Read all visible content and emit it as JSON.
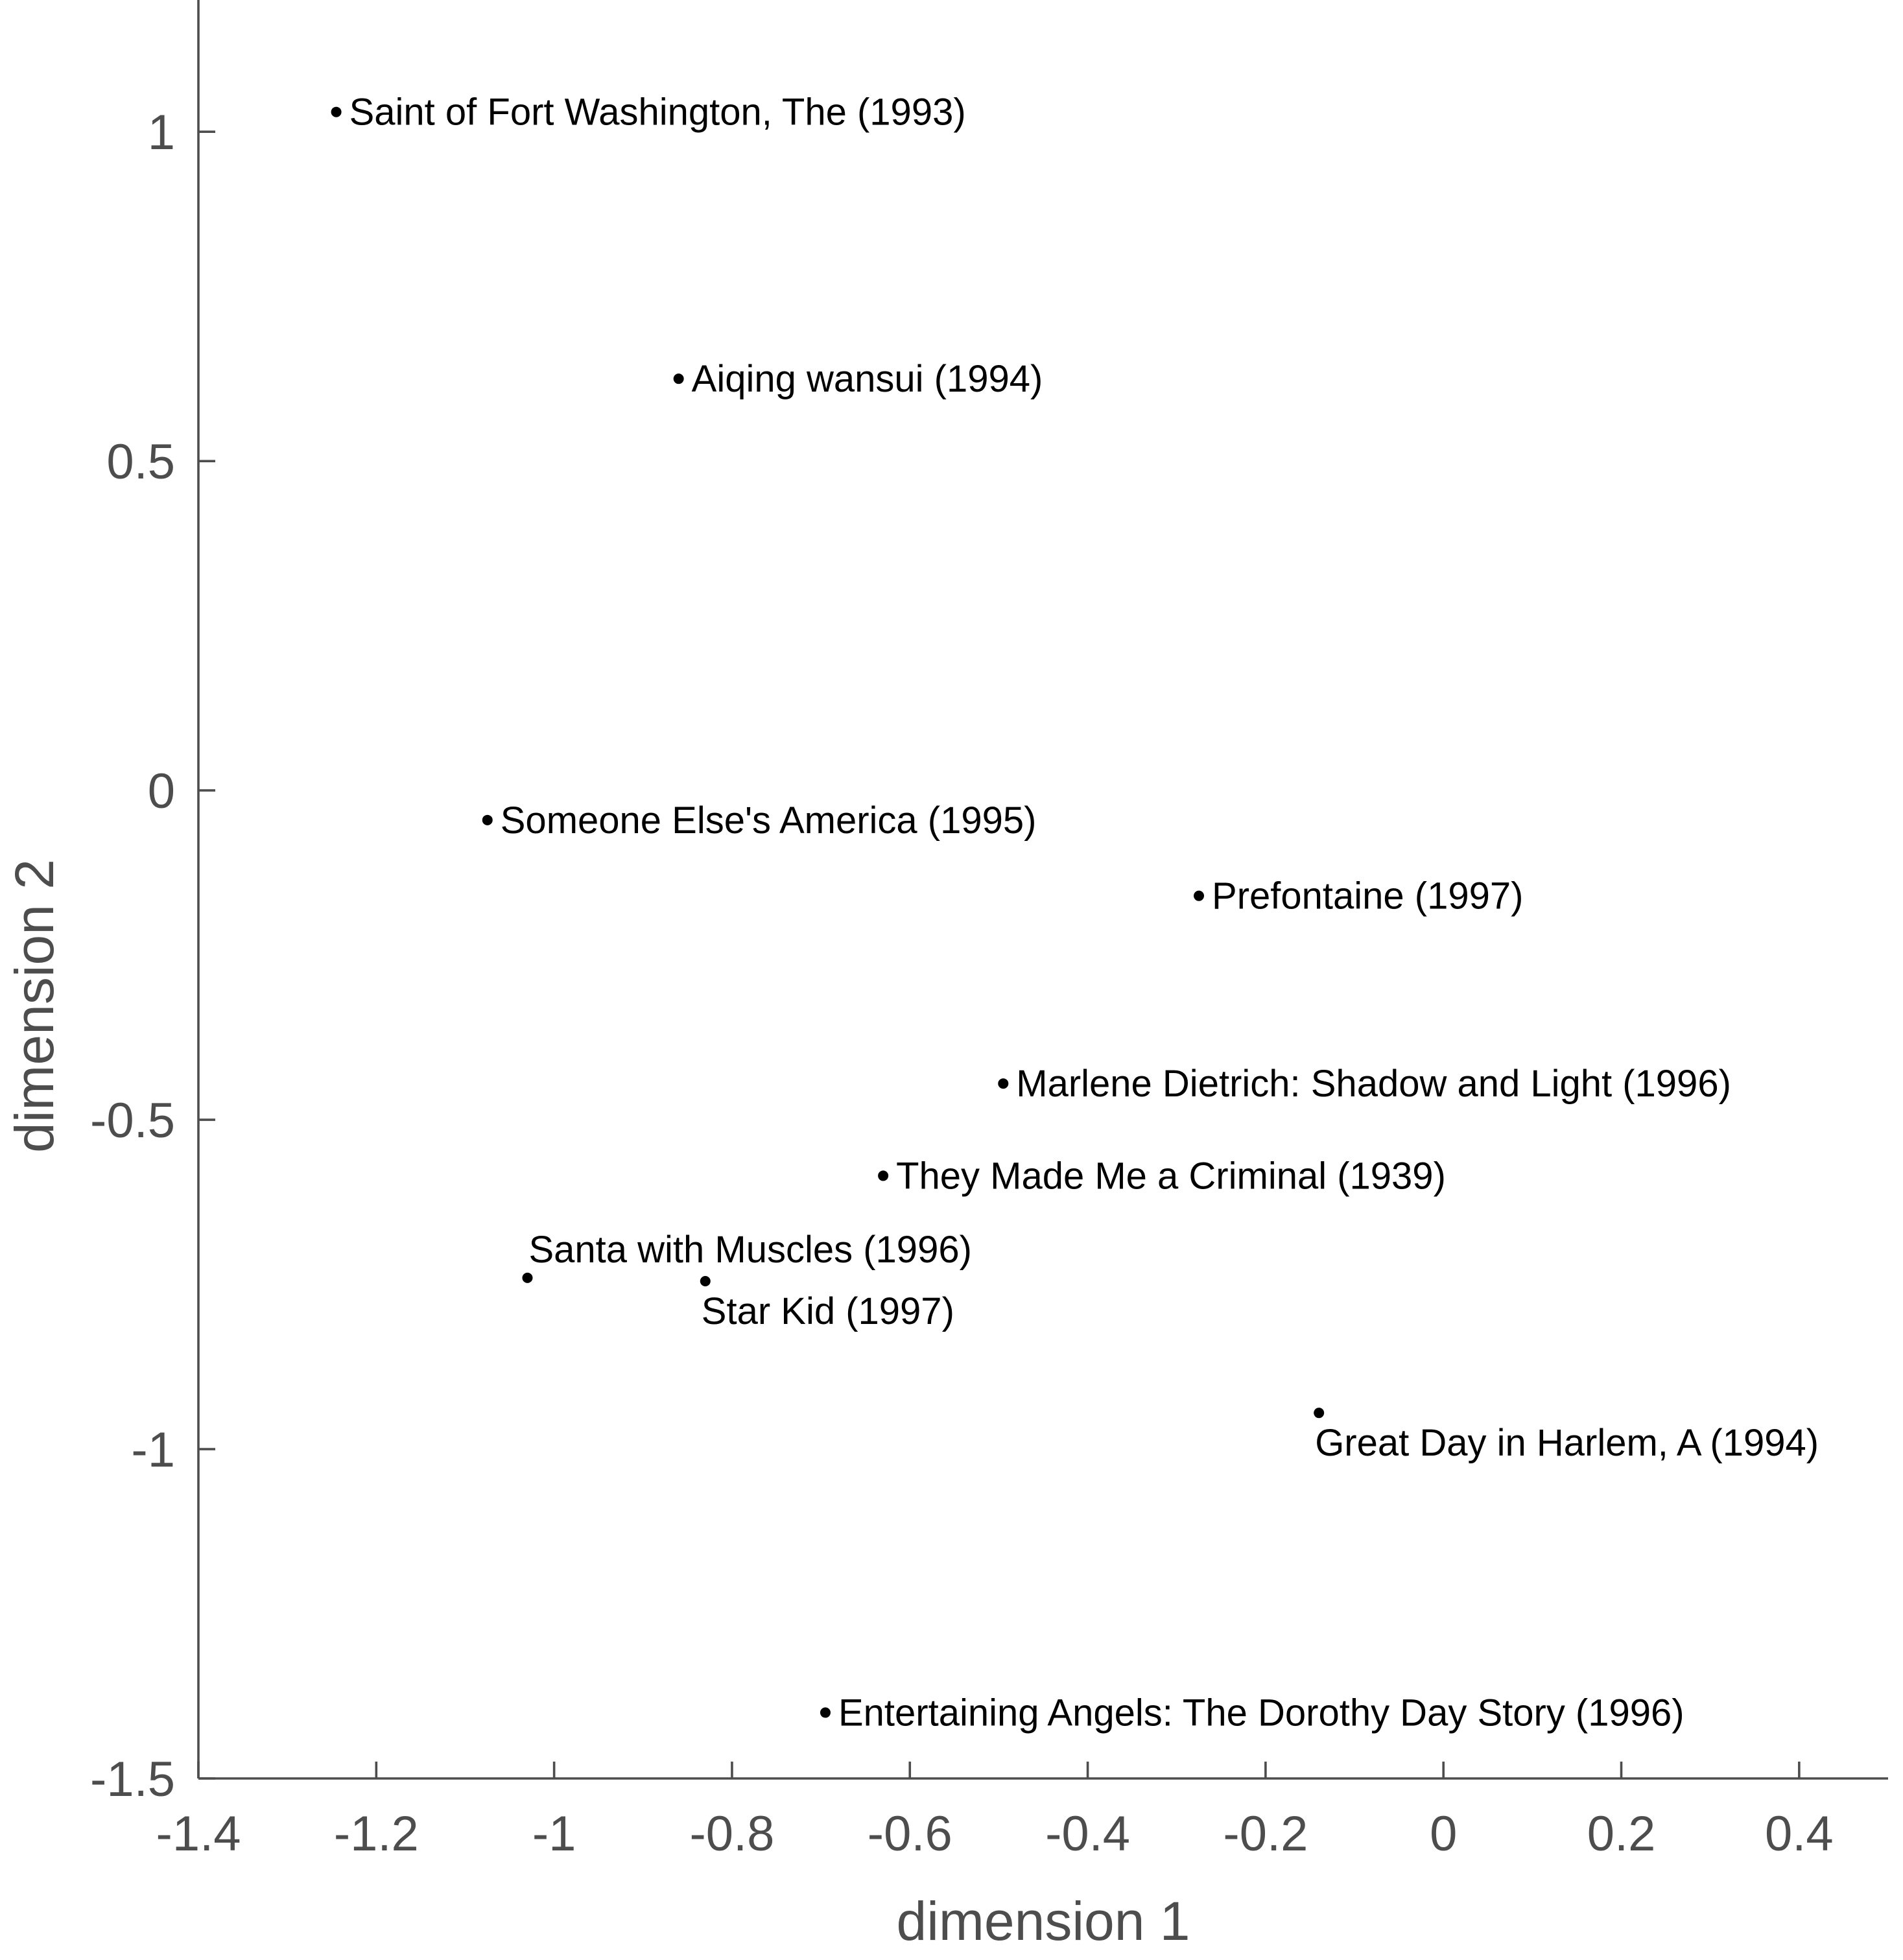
{
  "chart_data": {
    "type": "scatter",
    "title": "",
    "xlabel": "dimension 1",
    "ylabel": "dimension 2",
    "xlim": [
      -1.4,
      0.5
    ],
    "ylim": [
      -1.5,
      1.2
    ],
    "xticks": [
      -1.4,
      -1.2,
      -1,
      -0.8,
      -0.6,
      -0.4,
      -0.2,
      0,
      0.2,
      0.4
    ],
    "xtick_labels": [
      "-1.4",
      "-1.2",
      "-1",
      "-0.8",
      "-0.6",
      "-0.4",
      "-0.2",
      "0",
      "0.2",
      "0.4"
    ],
    "yticks": [
      1,
      0.5,
      0,
      -0.5,
      -1,
      -1.5
    ],
    "ytick_labels": [
      "1",
      "0.5",
      "0",
      "-0.5",
      "-1",
      "-1.5"
    ],
    "grid": false,
    "points": [
      {
        "label": "Saint of Fort Washington, The (1993)",
        "x": -1.245,
        "y": 1.03,
        "label_pos": "right"
      },
      {
        "label": "Aiqing wansui (1994)",
        "x": -0.86,
        "y": 0.625,
        "label_pos": "right"
      },
      {
        "label": "Someone Else's America (1995)",
        "x": -1.075,
        "y": -0.045,
        "label_pos": "right"
      },
      {
        "label": "Prefontaine (1997)",
        "x": -0.275,
        "y": -0.16,
        "label_pos": "right"
      },
      {
        "label": "Marlene Dietrich: Shadow and Light (1996)",
        "x": -0.495,
        "y": -0.445,
        "label_pos": "right"
      },
      {
        "label": "They Made Me a Criminal (1939)",
        "x": -0.63,
        "y": -0.585,
        "label_pos": "right"
      },
      {
        "label": "Santa with Muscles (1996)",
        "x": -1.03,
        "y": -0.74,
        "label_pos": "above"
      },
      {
        "label": "Star Kid (1997)",
        "x": -0.83,
        "y": -0.745,
        "label_pos": "below"
      },
      {
        "label": "Great Day in Harlem, A (1994)",
        "x": -0.14,
        "y": -0.945,
        "label_pos": "below"
      },
      {
        "label": "Entertaining Angels: The Dorothy Day Story (1996)",
        "x": -0.695,
        "y": -1.4,
        "label_pos": "right"
      }
    ]
  }
}
